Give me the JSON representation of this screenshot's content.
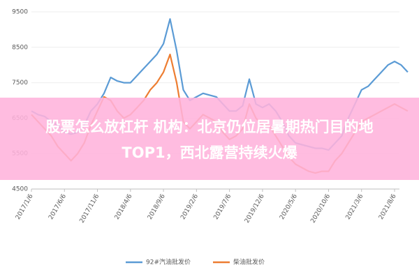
{
  "chart_data": {
    "type": "line",
    "categories": [
      "2017/1/6",
      null,
      null,
      null,
      null,
      "2017/6/6",
      null,
      null,
      null,
      null,
      "2017/11/6",
      null,
      null,
      null,
      null,
      "2018/4/6",
      null,
      null,
      null,
      null,
      "2018/9/6",
      null,
      null,
      null,
      null,
      "2019/2/6",
      null,
      null,
      null,
      null,
      "2019/7/6",
      null,
      null,
      null,
      null,
      "2019/12/6",
      null,
      null,
      null,
      null,
      "2020/5/6",
      null,
      null,
      null,
      null,
      "2020/10/6",
      null,
      null,
      null,
      null,
      "2021/3/6",
      null,
      null,
      null,
      null,
      "2021/8/6",
      null,
      null
    ],
    "series": [
      {
        "name": "92#汽油批发价",
        "color": "#5b9bd5",
        "values": [
          6700,
          6600,
          6550,
          6400,
          6300,
          6100,
          6050,
          6100,
          6300,
          6700,
          6900,
          7200,
          7650,
          7550,
          7500,
          7500,
          7700,
          7900,
          8100,
          8300,
          8600,
          9300,
          8400,
          7300,
          7000,
          7100,
          7200,
          7150,
          7100,
          6900,
          6700,
          6700,
          6850,
          7600,
          6900,
          6800,
          6900,
          6700,
          6400,
          6000,
          5800,
          5750,
          5700,
          5650,
          5650,
          5600,
          5800,
          6000,
          6500,
          6900,
          7300,
          7400,
          7600,
          7800,
          8000,
          8100,
          8000,
          7800
        ]
      },
      {
        "name": "柴油批发价",
        "color": "#ed7d31",
        "values": [
          6600,
          6400,
          6200,
          6000,
          5700,
          5500,
          5300,
          5500,
          5800,
          6300,
          6700,
          7100,
          7000,
          6700,
          6500,
          6600,
          6800,
          7000,
          7300,
          7500,
          7800,
          8300,
          7500,
          6400,
          6200,
          6400,
          6600,
          6500,
          6400,
          6100,
          5900,
          6000,
          6200,
          6900,
          6500,
          6300,
          6300,
          6000,
          5700,
          5400,
          5200,
          5100,
          5000,
          4950,
          5000,
          5000,
          5300,
          5500,
          5800,
          6100,
          6400,
          6500,
          6600,
          6700,
          6800,
          6900,
          6800,
          6700
        ]
      }
    ],
    "ylim": [
      4500,
      9500
    ],
    "yticks": [
      4500,
      5500,
      6500,
      7500,
      8500,
      9500
    ],
    "grid": true
  },
  "overlay": {
    "lines": [
      "股票怎么放杠杆 机构：北京仍位居暑期热门目的地",
      "TOP1，西北露营持续火爆"
    ]
  }
}
